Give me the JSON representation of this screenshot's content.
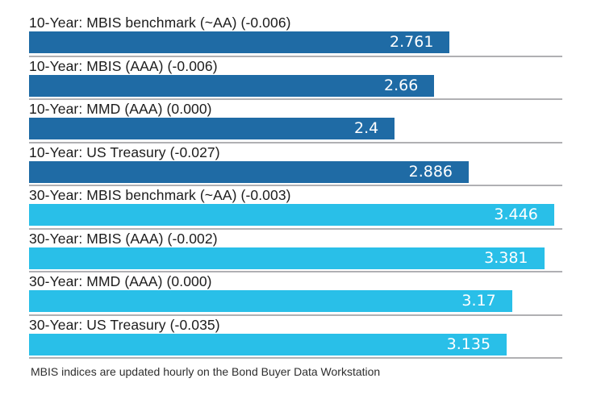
{
  "chart_data": {
    "type": "bar",
    "orientation": "horizontal",
    "title": "",
    "xlabel": "",
    "ylabel": "",
    "xlim": [
      0,
      3.5
    ],
    "grid": false,
    "legend_position": "none",
    "bar_value_label_color": "#ffffff",
    "separator_color": "#b0b0b3",
    "colors": {
      "10-year": "#1f6ba5",
      "30-year": "#29bfe8"
    },
    "categories": [
      "10-Year: MBIS benchmark (~AA) (-0.006)",
      "10-Year: MBIS (AAA) (-0.006)",
      "10-Year: MMD (AAA) (0.000)",
      "10-Year: US Treasury (-0.027)",
      "30-Year: MBIS benchmark (~AA) (-0.003)",
      "30-Year: MBIS (AAA) (-0.002)",
      "30-Year: MMD (AAA) (0.000)",
      "30-Year: US Treasury (-0.035)"
    ],
    "values": [
      2.761,
      2.66,
      2.4,
      2.886,
      3.446,
      3.381,
      3.17,
      3.135
    ],
    "value_labels": [
      "2.761",
      "2.66",
      "2.4",
      "2.886",
      "3.446",
      "3.381",
      "3.17",
      "3.135"
    ],
    "series_of_row": [
      "10-year",
      "10-year",
      "10-year",
      "10-year",
      "30-year",
      "30-year",
      "30-year",
      "30-year"
    ],
    "footnote": "MBIS indices are updated hourly on the Bond Buyer Data Workstation"
  }
}
